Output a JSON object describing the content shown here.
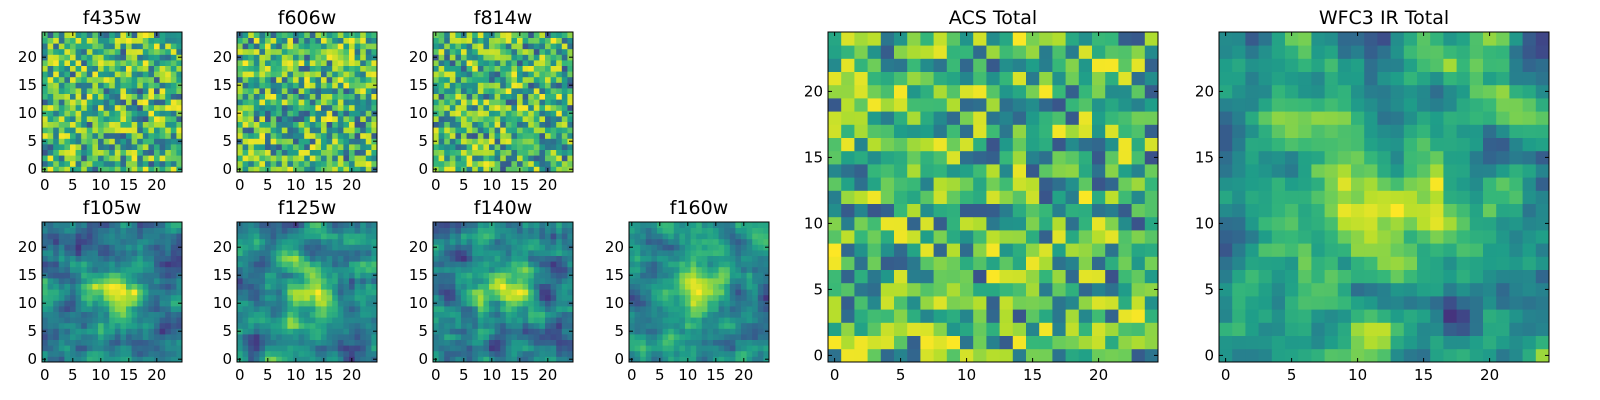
{
  "chart_data": [
    {
      "type": "heatmap",
      "title": "f435w",
      "grid_size": 25,
      "xticks": [
        0,
        5,
        10,
        15,
        20
      ],
      "yticks": [
        0,
        5,
        10,
        15,
        20
      ],
      "colormap": "viridis",
      "pattern": "noise"
    },
    {
      "type": "heatmap",
      "title": "f606w",
      "grid_size": 25,
      "xticks": [
        0,
        5,
        10,
        15,
        20
      ],
      "yticks": [
        0,
        5,
        10,
        15,
        20
      ],
      "colormap": "viridis",
      "pattern": "noise"
    },
    {
      "type": "heatmap",
      "title": "f814w",
      "grid_size": 25,
      "xticks": [
        0,
        5,
        10,
        15,
        20
      ],
      "yticks": [
        0,
        5,
        10,
        15,
        20
      ],
      "colormap": "viridis",
      "pattern": "noise"
    },
    {
      "type": "heatmap",
      "title": "f105w",
      "grid_size": 25,
      "xticks": [
        0,
        5,
        10,
        15,
        20
      ],
      "yticks": [
        0,
        5,
        10,
        15,
        20
      ],
      "colormap": "viridis",
      "pattern": "smooth"
    },
    {
      "type": "heatmap",
      "title": "f125w",
      "grid_size": 25,
      "xticks": [
        0,
        5,
        10,
        15,
        20
      ],
      "yticks": [
        0,
        5,
        10,
        15,
        20
      ],
      "colormap": "viridis",
      "pattern": "smooth"
    },
    {
      "type": "heatmap",
      "title": "f140w",
      "grid_size": 25,
      "xticks": [
        0,
        5,
        10,
        15,
        20
      ],
      "yticks": [
        0,
        5,
        10,
        15,
        20
      ],
      "colormap": "viridis",
      "pattern": "smooth"
    },
    {
      "type": "heatmap",
      "title": "f160w",
      "grid_size": 25,
      "xticks": [
        0,
        5,
        10,
        15,
        20
      ],
      "yticks": [
        0,
        5,
        10,
        15,
        20
      ],
      "colormap": "viridis",
      "pattern": "smooth"
    },
    {
      "type": "heatmap",
      "title": "ACS Total",
      "grid_size": 25,
      "xticks": [
        0,
        5,
        10,
        15,
        20
      ],
      "yticks": [
        0,
        5,
        10,
        15,
        20
      ],
      "colormap": "viridis",
      "pattern": "noise"
    },
    {
      "type": "heatmap",
      "title": "WFC3 IR Total",
      "grid_size": 25,
      "xticks": [
        0,
        5,
        10,
        15,
        20
      ],
      "yticks": [
        0,
        5,
        10,
        15,
        20
      ],
      "colormap": "viridis",
      "pattern": "smooth"
    }
  ]
}
